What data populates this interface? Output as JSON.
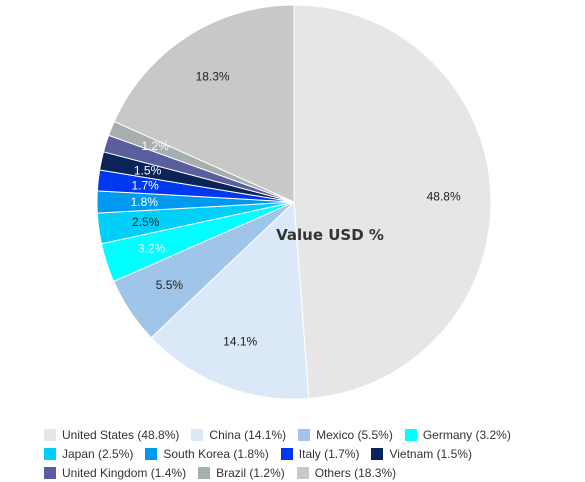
{
  "chart_data": {
    "type": "pie",
    "title": "Value USD %",
    "start_angle_deg": 0,
    "direction": "clockwise",
    "slices": [
      {
        "name": "United States",
        "value": 48.8,
        "label": "48.8%",
        "legend": "United States (48.8%)",
        "color": "#e6e6e6",
        "label_light": false
      },
      {
        "name": "China",
        "value": 14.1,
        "label": "14.1%",
        "legend": "China (14.1%)",
        "color": "#dae8f8",
        "label_light": false
      },
      {
        "name": "Mexico",
        "value": 5.5,
        "label": "5.5%",
        "legend": "Mexico (5.5%)",
        "color": "#9fc5e8",
        "label_light": false
      },
      {
        "name": "Germany",
        "value": 3.2,
        "label": "3.2%",
        "legend": "Germany (3.2%)",
        "color": "#00ffff",
        "label_light": true
      },
      {
        "name": "Japan",
        "value": 2.5,
        "label": "2.5%",
        "legend": "Japan (2.5%)",
        "color": "#00d0f8",
        "label_light": false
      },
      {
        "name": "South Korea",
        "value": 1.8,
        "label": "1.8%",
        "legend": "South Korea (1.8%)",
        "color": "#0099f0",
        "label_light": true
      },
      {
        "name": "Italy",
        "value": 1.7,
        "label": "1.7%",
        "legend": "Italy (1.7%)",
        "color": "#0038f0",
        "label_light": true
      },
      {
        "name": "Vietnam",
        "value": 1.5,
        "label": "1.5%",
        "legend": "Vietnam (1.5%)",
        "color": "#0a2458",
        "label_light": true
      },
      {
        "name": "United Kingdom",
        "value": 1.4,
        "label": "",
        "legend": "United Kingdom (1.4%)",
        "color": "#5a5e9e",
        "label_light": true
      },
      {
        "name": "Brazil",
        "value": 1.2,
        "label": "1.2%",
        "legend": "Brazil (1.2%)",
        "color": "#a6afae",
        "label_light": true
      },
      {
        "name": "Others",
        "value": 18.3,
        "label": "18.3%",
        "legend": "Others (18.3%)",
        "color": "#c8c8c8",
        "label_light": false
      }
    ]
  }
}
